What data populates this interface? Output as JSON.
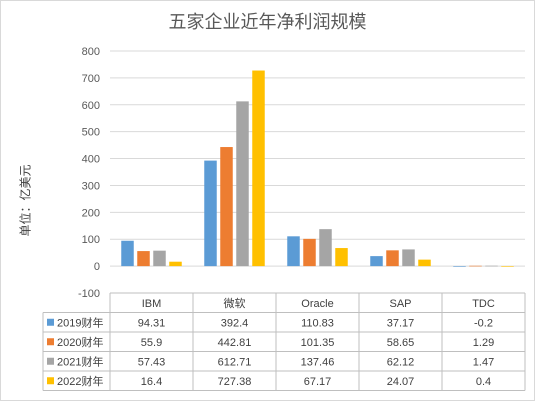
{
  "chart_data": {
    "type": "bar",
    "title": "五家企业近年净利润规模",
    "ylabel": "单位：亿美元",
    "xlabel": "",
    "categories": [
      "IBM",
      "微软",
      "Oracle",
      "SAP",
      "TDC"
    ],
    "ylim": [
      -100,
      800
    ],
    "yticks": [
      -100,
      0,
      100,
      200,
      300,
      400,
      500,
      600,
      700,
      800
    ],
    "grid": true,
    "legend": "data-table-below",
    "series": [
      {
        "name": "2019财年",
        "color": "#5b9bd5",
        "values": [
          94.31,
          392.4,
          110.83,
          37.17,
          -0.2
        ]
      },
      {
        "name": "2020财年",
        "color": "#ed7d31",
        "values": [
          55.9,
          442.81,
          101.35,
          58.65,
          1.29
        ]
      },
      {
        "name": "2021财年",
        "color": "#a5a5a5",
        "values": [
          57.43,
          612.71,
          137.46,
          62.12,
          1.47
        ]
      },
      {
        "name": "2022财年",
        "color": "#ffc000",
        "values": [
          16.4,
          727.38,
          67.17,
          24.07,
          0.4
        ]
      }
    ],
    "table_cells": [
      [
        "94.31",
        "392.4",
        "110.83",
        "37.17",
        "-0.2"
      ],
      [
        "55.9",
        "442.81",
        "101.35",
        "58.65",
        "1.29"
      ],
      [
        "57.43",
        "612.71",
        "137.46",
        "62.12",
        "1.47"
      ],
      [
        "16.4",
        "727.38",
        "67.17",
        "24.07",
        "0.4"
      ]
    ]
  }
}
